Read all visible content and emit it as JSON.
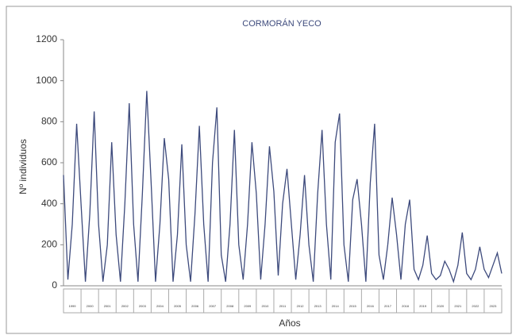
{
  "chart_data": {
    "type": "line",
    "title": "CORMORÁN YECO",
    "x_label": "Años",
    "y_label": "Nº individuos",
    "x": [
      1999,
      1999.25,
      1999.5,
      1999.75,
      2000,
      2000.25,
      2000.5,
      2000.75,
      2001,
      2001.25,
      2001.5,
      2001.75,
      2002,
      2002.25,
      2002.5,
      2002.75,
      2003,
      2003.25,
      2003.5,
      2003.75,
      2004,
      2004.25,
      2004.5,
      2004.75,
      2005,
      2005.25,
      2005.5,
      2005.75,
      2006,
      2006.25,
      2006.5,
      2006.75,
      2007,
      2007.25,
      2007.5,
      2007.75,
      2008,
      2008.25,
      2008.5,
      2008.75,
      2009,
      2009.25,
      2009.5,
      2009.75,
      2010,
      2010.25,
      2010.5,
      2010.75,
      2011,
      2011.25,
      2011.5,
      2011.75,
      2012,
      2012.25,
      2012.5,
      2012.75,
      2013,
      2013.25,
      2013.5,
      2013.75,
      2014,
      2014.25,
      2014.5,
      2014.75,
      2015,
      2015.25,
      2015.5,
      2015.75,
      2016,
      2016.25,
      2016.5,
      2016.75,
      2017,
      2017.25,
      2017.5,
      2017.75,
      2018,
      2018.25,
      2018.5,
      2018.75,
      2019,
      2019.25,
      2019.5,
      2019.75,
      2020,
      2020.25,
      2020.5,
      2020.75,
      2021,
      2021.25,
      2021.5,
      2021.75,
      2022,
      2022.25,
      2022.5,
      2022.75,
      2023,
      2023.25,
      2023.5,
      2023.75,
      2024
    ],
    "series": [
      {
        "name": "Cormorán",
        "color": "#3d4a7c",
        "values": [
          540,
          30,
          300,
          790,
          400,
          20,
          350,
          850,
          300,
          20,
          200,
          700,
          250,
          20,
          400,
          890,
          300,
          20,
          450,
          950,
          500,
          20,
          300,
          720,
          520,
          20,
          250,
          690,
          200,
          20,
          350,
          780,
          300,
          20,
          600,
          870,
          150,
          20,
          300,
          760,
          200,
          30,
          300,
          700,
          450,
          30,
          300,
          680,
          460,
          50,
          400,
          570,
          300,
          30,
          250,
          540,
          200,
          20,
          450,
          760,
          300,
          30,
          700,
          840,
          200,
          20,
          420,
          520,
          300,
          20,
          500,
          790,
          150,
          30,
          200,
          430,
          250,
          30,
          300,
          420,
          80,
          30,
          100,
          245,
          60,
          30,
          50,
          120,
          80,
          20,
          100,
          260,
          60,
          30,
          80,
          190,
          80,
          40,
          100,
          160,
          60
        ]
      }
    ],
    "xlim": [
      1999,
      2024
    ],
    "xticks": [
      1999,
      2000,
      2001,
      2002,
      2003,
      2004,
      2005,
      2006,
      2007,
      2008,
      2009,
      2010,
      2011,
      2012,
      2013,
      2014,
      2015,
      2016,
      2017,
      2018,
      2019,
      2020,
      2021,
      2022,
      2023
    ],
    "ylim": [
      0,
      1200
    ],
    "yticks": [
      0,
      200,
      400,
      600,
      800,
      1000,
      1200
    ]
  }
}
